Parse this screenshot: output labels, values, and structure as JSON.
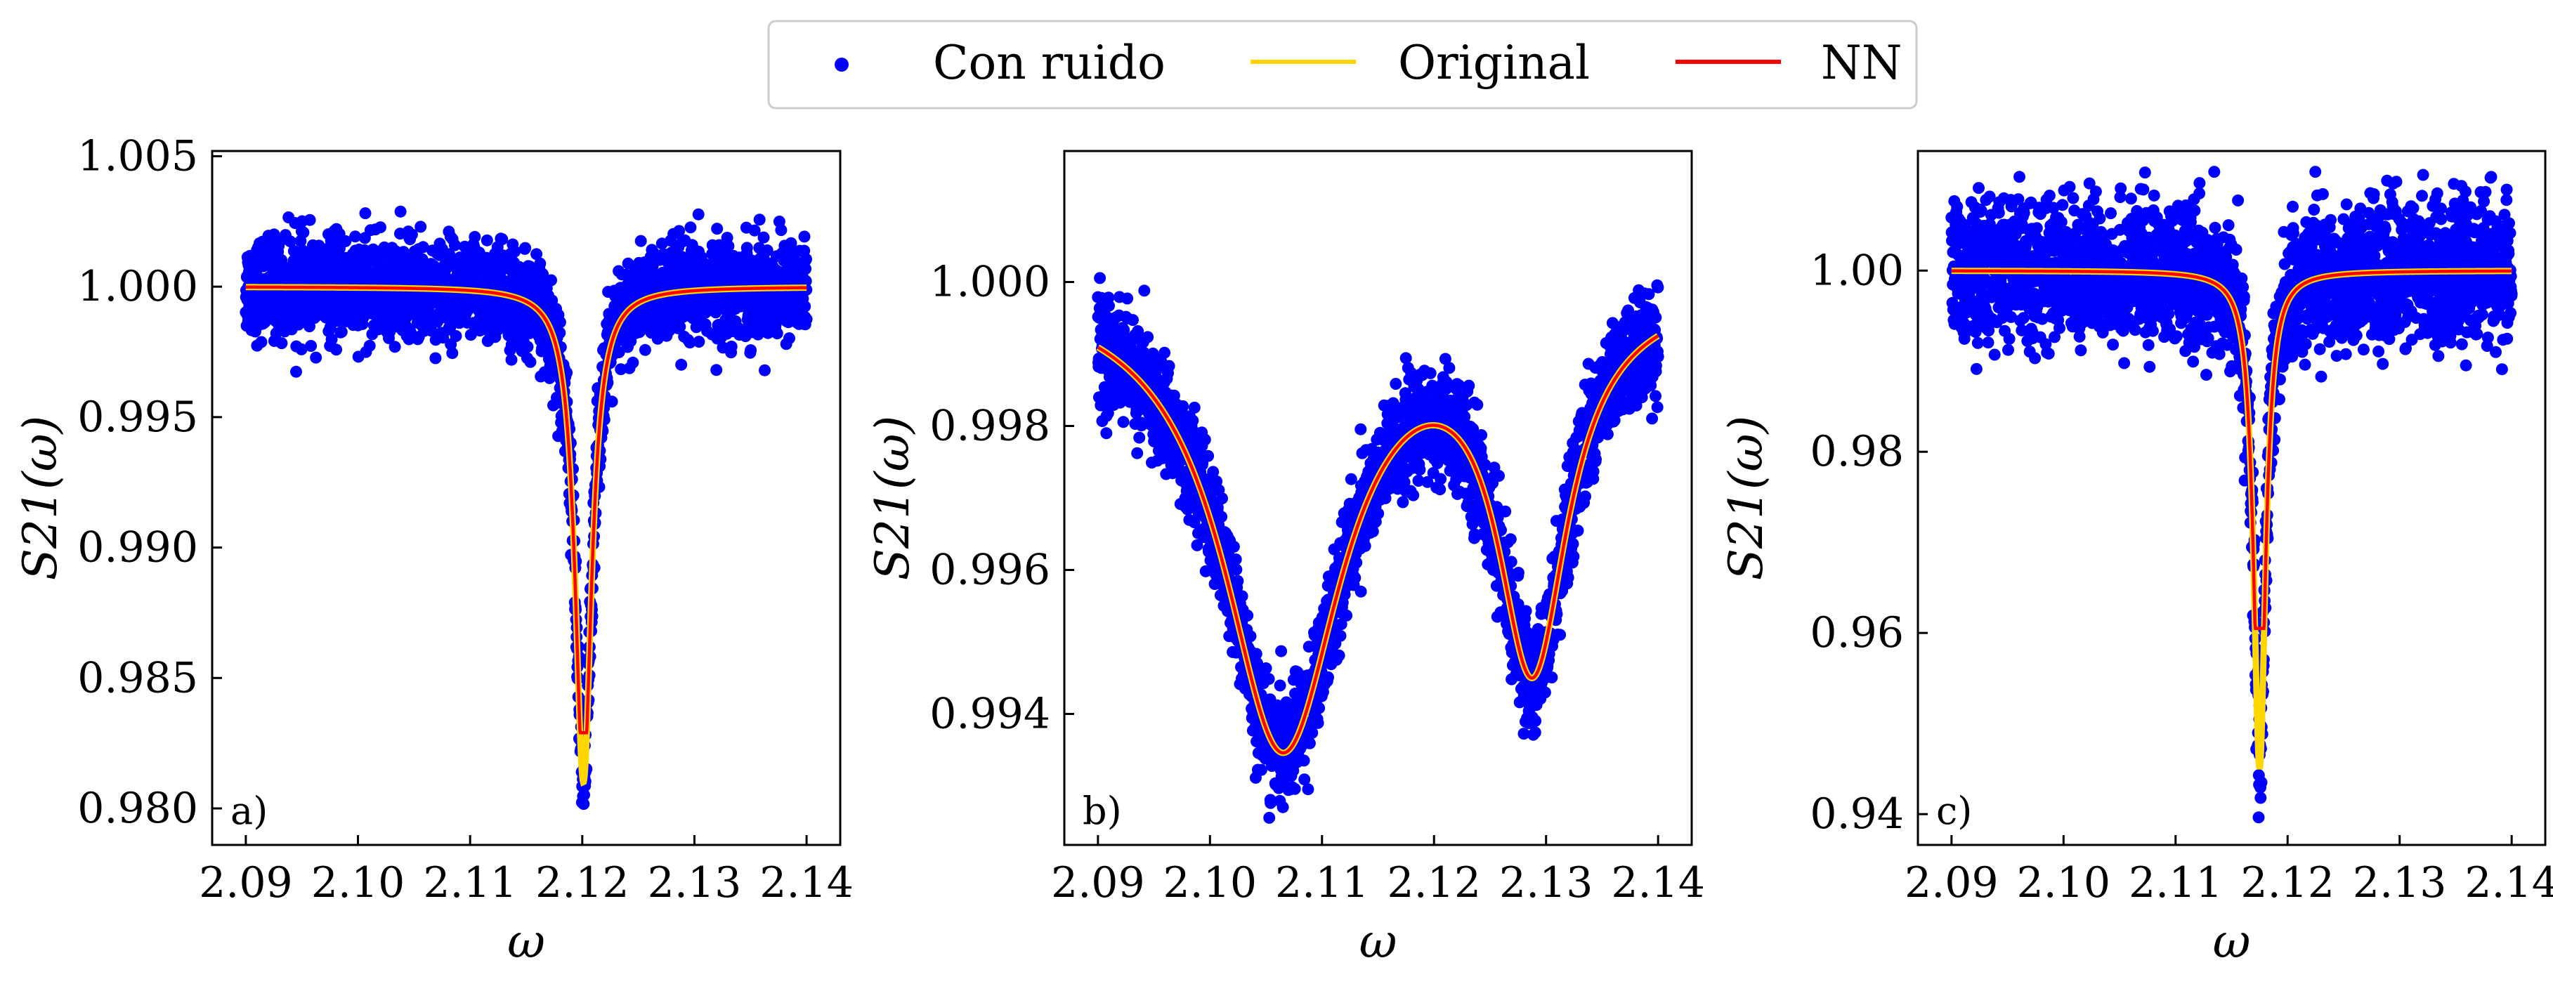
{
  "legend": {
    "items": [
      {
        "label": "Con ruido",
        "marker": "dot",
        "color": "#0000ff"
      },
      {
        "label": "Original",
        "marker": "line",
        "color": "#ffd700"
      },
      {
        "label": "NN",
        "marker": "line",
        "color": "#ff0000"
      }
    ],
    "placement": "top-center"
  },
  "chart_data": [
    {
      "type": "scatter",
      "panel_label": "a)",
      "xlabel": "ω",
      "ylabel": "S21(ω)",
      "x_ticks": [
        "2.09",
        "2.10",
        "2.11",
        "2.12",
        "2.13",
        "2.14"
      ],
      "y_ticks": [
        "0.980",
        "0.985",
        "0.990",
        "0.995",
        "1.000",
        "1.005"
      ],
      "xlim": [
        2.087,
        2.143
      ],
      "ylim": [
        0.9786,
        1.0052
      ],
      "noise_amplitude": 0.0015,
      "resonances": [
        {
          "center": 2.1201,
          "depth": 0.019,
          "width": 0.0009
        }
      ],
      "series": [
        {
          "name": "Con ruido",
          "kind": "scatter",
          "color": "#0000ff"
        },
        {
          "name": "Original",
          "kind": "line",
          "color": "#ffd700"
        },
        {
          "name": "NN",
          "kind": "line",
          "color": "#ff0000",
          "min_value": 0.9829
        }
      ]
    },
    {
      "type": "scatter",
      "panel_label": "b)",
      "xlabel": "ω",
      "ylabel": "S21(ω)",
      "x_ticks": [
        "2.09",
        "2.10",
        "2.11",
        "2.12",
        "2.13",
        "2.14"
      ],
      "y_ticks": [
        "0.994",
        "0.996",
        "0.998",
        "1.000"
      ],
      "xlim": [
        2.087,
        2.143
      ],
      "ylim": [
        0.99218,
        1.00182
      ],
      "noise_amplitude": 0.0006,
      "resonances": [
        {
          "center": 2.1065,
          "depth": 0.0064,
          "width": 0.0065
        },
        {
          "center": 2.1288,
          "depth": 0.005,
          "width": 0.0038
        }
      ],
      "series": [
        {
          "name": "Con ruido",
          "kind": "scatter",
          "color": "#0000ff"
        },
        {
          "name": "Original",
          "kind": "line",
          "color": "#ffd700"
        },
        {
          "name": "NN",
          "kind": "line",
          "color": "#ff0000"
        }
      ]
    },
    {
      "type": "scatter",
      "panel_label": "c)",
      "xlabel": "ω",
      "ylabel": "S21(ω)",
      "x_ticks": [
        "2.09",
        "2.10",
        "2.11",
        "2.12",
        "2.13",
        "2.14"
      ],
      "y_ticks": [
        "0.94",
        "0.96",
        "0.98",
        "1.00"
      ],
      "xlim": [
        2.087,
        2.143
      ],
      "ylim": [
        0.9366,
        1.0132
      ],
      "noise_amplitude": 0.006,
      "resonances": [
        {
          "center": 2.1175,
          "depth": 0.055,
          "width": 0.00065
        }
      ],
      "series": [
        {
          "name": "Con ruido",
          "kind": "scatter",
          "color": "#0000ff"
        },
        {
          "name": "Original",
          "kind": "line",
          "color": "#ffd700"
        },
        {
          "name": "NN",
          "kind": "line",
          "color": "#ff0000",
          "min_value": 0.9605
        }
      ]
    }
  ]
}
